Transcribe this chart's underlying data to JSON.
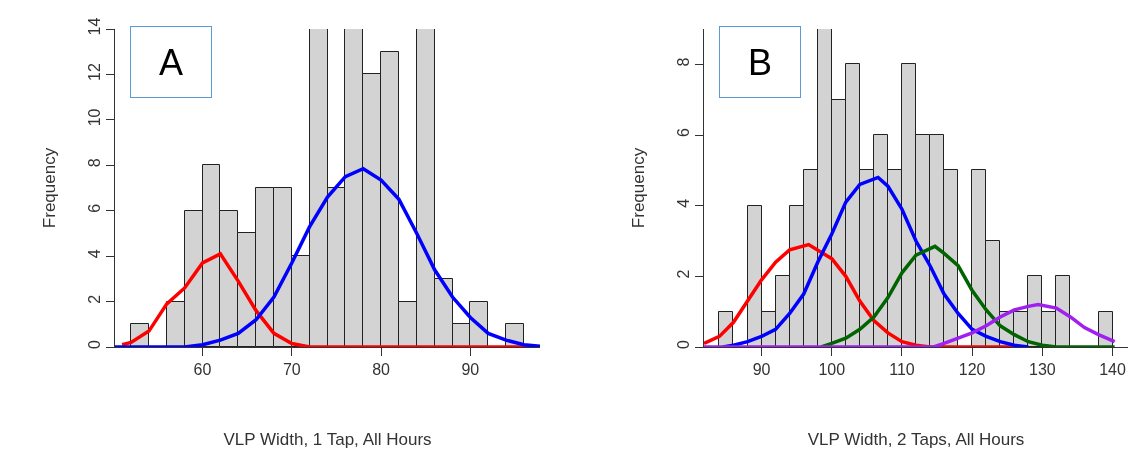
{
  "chart_data": [
    {
      "type": "histogram",
      "xlabel": "VLP Width, 1 Tap, All Hours",
      "ylabel": "Frequency",
      "annotations": [
        "A"
      ],
      "color": "#d3d3d3",
      "grid": false,
      "bins": [
        52,
        54,
        56,
        58,
        60,
        62,
        64,
        66,
        68,
        70,
        72,
        74,
        76,
        78,
        80,
        82,
        84,
        86,
        88,
        90,
        92,
        94,
        96
      ],
      "values": [
        1,
        0,
        2,
        6,
        8,
        6,
        5,
        7,
        7,
        4,
        14,
        7,
        14,
        12,
        13,
        2,
        14,
        3,
        1,
        2,
        0,
        1
      ],
      "xlim": [
        50.2,
        97.8
      ],
      "xticks": [
        60,
        70,
        80,
        90
      ],
      "ylim": [
        0,
        14
      ],
      "yticks": [
        0,
        2,
        4,
        6,
        8,
        10,
        12,
        14
      ],
      "series": [
        {
          "type": "line",
          "color": "#ff0000",
          "x": [
            51,
            52,
            54,
            56,
            58,
            60,
            62,
            64,
            66,
            68,
            70,
            72,
            74,
            97.8
          ],
          "values": [
            0.1,
            0.2,
            0.7,
            1.9,
            2.6,
            3.7,
            4.1,
            2.9,
            1.6,
            0.6,
            0.15,
            0,
            0,
            0
          ]
        },
        {
          "type": "line",
          "color": "#0000ff",
          "x": [
            50.2,
            58,
            60,
            62,
            64,
            66,
            68,
            70,
            72,
            74,
            76,
            78,
            80,
            82,
            84,
            86,
            88,
            90,
            92,
            94,
            96,
            97.8
          ],
          "values": [
            0,
            0,
            0.1,
            0.3,
            0.6,
            1.2,
            2.2,
            3.7,
            5.3,
            6.6,
            7.5,
            7.85,
            7.35,
            6.5,
            5,
            3.4,
            2.2,
            1.3,
            0.6,
            0.3,
            0.1,
            0.03
          ]
        }
      ]
    },
    {
      "type": "histogram",
      "xlabel": "VLP Width, 2 Taps, All Hours",
      "ylabel": "Frequency",
      "annotations": [
        "B"
      ],
      "color": "#d3d3d3",
      "grid": false,
      "bins": [
        84,
        86,
        88,
        90,
        92,
        94,
        96,
        98,
        100,
        102,
        104,
        106,
        108,
        110,
        112,
        114,
        116,
        118,
        120,
        122,
        124,
        126,
        128,
        130,
        132,
        134,
        136,
        138,
        140
      ],
      "values": [
        1,
        0,
        4,
        1,
        2,
        4,
        5,
        9,
        7,
        8,
        5,
        6,
        5,
        8,
        6,
        6,
        5,
        0,
        5,
        3,
        1,
        1,
        2,
        1,
        2,
        0,
        0,
        1
      ],
      "xlim": [
        81.8,
        142.2
      ],
      "xticks": [
        90,
        100,
        110,
        120,
        130,
        140
      ],
      "ylim": [
        0,
        9
      ],
      "yticks": [
        0,
        2,
        4,
        6,
        8
      ],
      "series": [
        {
          "type": "line",
          "color": "#ff0000",
          "x": [
            81.8,
            84,
            86,
            88,
            90,
            92,
            94,
            96.7,
            100,
            102,
            104,
            106,
            108,
            110,
            112,
            114,
            127
          ],
          "values": [
            0.1,
            0.3,
            0.7,
            1.3,
            1.9,
            2.4,
            2.75,
            2.9,
            2.5,
            2,
            1.3,
            0.75,
            0.4,
            0.15,
            0.05,
            0,
            0
          ]
        },
        {
          "type": "line",
          "color": "#0000ff",
          "x": [
            84.5,
            86,
            88,
            90,
            92,
            94,
            96,
            98,
            100,
            102,
            104,
            106.6,
            108,
            110,
            112,
            114,
            116,
            118,
            120,
            122,
            124,
            126,
            128
          ],
          "values": [
            0,
            0.05,
            0.15,
            0.3,
            0.5,
            0.95,
            1.5,
            2.4,
            3.2,
            4.1,
            4.6,
            4.8,
            4.55,
            3.9,
            3,
            2.3,
            1.5,
            0.95,
            0.5,
            0.3,
            0.15,
            0.05,
            0
          ]
        },
        {
          "type": "line",
          "color": "#006400",
          "x": [
            98.5,
            100,
            102,
            104,
            106,
            108,
            110,
            112,
            114.7,
            116,
            118,
            120,
            122,
            124,
            126,
            128,
            130,
            132,
            140.3
          ],
          "values": [
            0,
            0.1,
            0.25,
            0.5,
            0.85,
            1.4,
            2.1,
            2.6,
            2.85,
            2.65,
            2.3,
            1.6,
            1.05,
            0.6,
            0.35,
            0.15,
            0.05,
            0,
            0
          ]
        },
        {
          "type": "line",
          "color": "#a020f0",
          "x": [
            81.8,
            114.5,
            116,
            118,
            120,
            122,
            124,
            126,
            128,
            129.4,
            132,
            134,
            136,
            138,
            140.3
          ],
          "values": [
            0,
            0,
            0.1,
            0.25,
            0.4,
            0.6,
            0.85,
            1.05,
            1.15,
            1.2,
            1.1,
            0.85,
            0.55,
            0.35,
            0.15
          ]
        }
      ]
    }
  ]
}
